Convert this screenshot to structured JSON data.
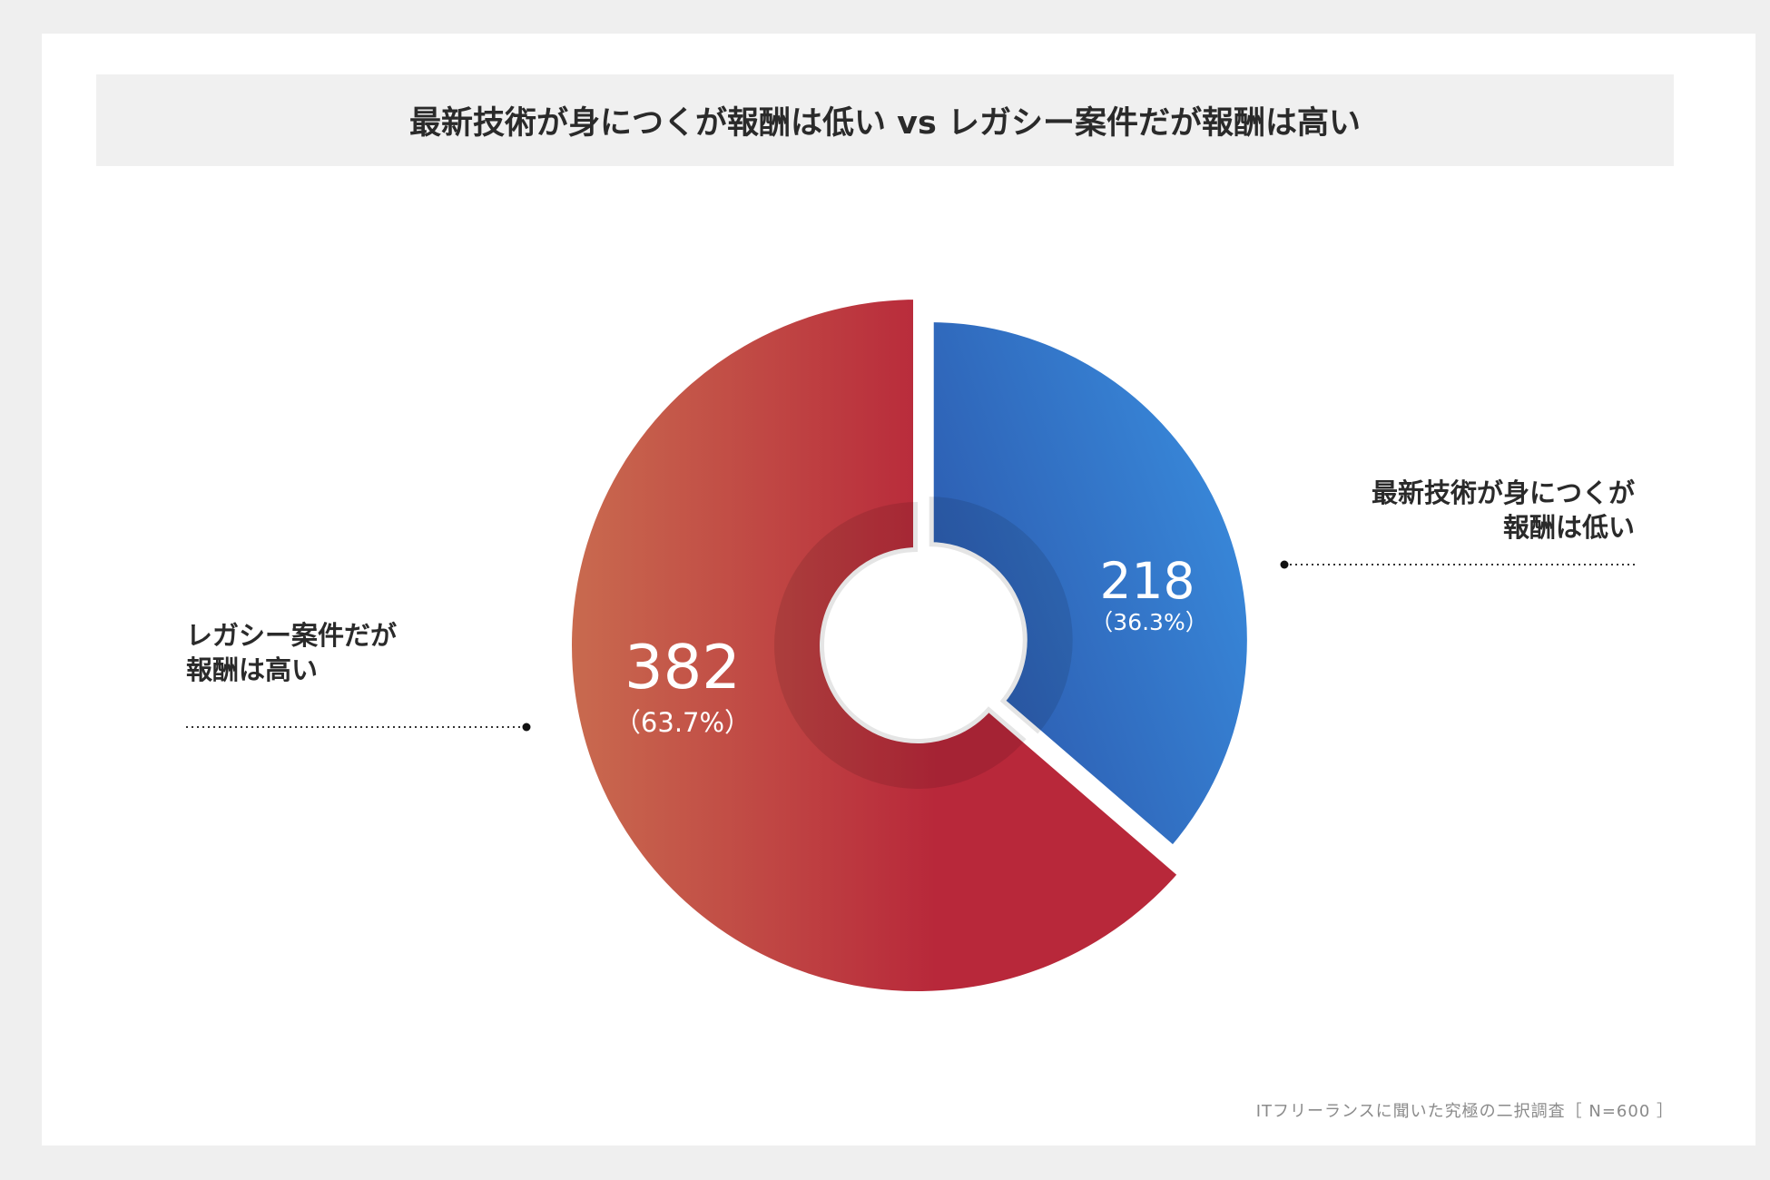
{
  "chart_data": {
    "type": "donut",
    "title": "最新技術が身につくが報酬は低い vs レガシー案件だが報酬は高い",
    "categories": [
      "最新技術が身につくが報酬は低い",
      "レガシー案件だが報酬は高い"
    ],
    "values": [
      218,
      382
    ],
    "percentages": [
      36.3,
      63.7
    ],
    "percentage_labels": [
      "（36.3%）",
      "（63.7%）"
    ],
    "colors": [
      "#2c5aae",
      "#b8283a"
    ],
    "gradient_colors": [
      "#3b92e3",
      "#c96b4f"
    ],
    "exploded": [
      true,
      false
    ],
    "note": "ITフリーランスに聞いた究極の二択調査［ N=600 ］"
  }
}
